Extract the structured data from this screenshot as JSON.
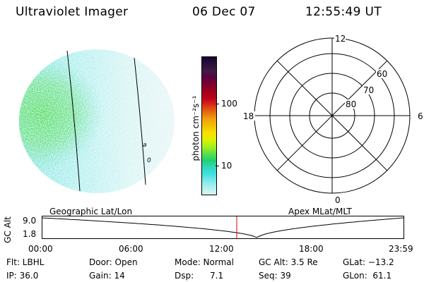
{
  "header": {
    "instrument": "Ultraviolet Imager",
    "date": "06 Dec 07",
    "time": "12:55:49 UT"
  },
  "colorbar": {
    "unit": "photon cm⁻²s⁻¹",
    "ticks": [
      "100",
      "10"
    ],
    "colors": [
      "#1a0033",
      "#2a0f3a",
      "#3f1a47",
      "#5c0040",
      "#80002a",
      "#a0001e",
      "#c0001a",
      "#d8301a",
      "#e86a10",
      "#f0a010",
      "#f0c000",
      "#f8e000",
      "#e0f000",
      "#a8ee20",
      "#60e040",
      "#20d070",
      "#30d8b8",
      "#40e0e0",
      "#80e8e8",
      "#b0f0f0",
      "#d8f4f4"
    ]
  },
  "polar": {
    "mlt_labels": {
      "top": "12",
      "right": "6",
      "bottom": "0",
      "left": "18"
    },
    "lat_labels": [
      "60",
      "70",
      "80"
    ]
  },
  "map_labels": [
    "a",
    "0"
  ],
  "timeline": {
    "left_caption": "Geographic Lat/Lon",
    "right_caption": "Apex MLat/MLT",
    "y_axis_label": "GC Alt",
    "y_ticks": [
      "9.0",
      "1.8"
    ],
    "x_ticks": [
      "00:00",
      "06:00",
      "12:00",
      "18:00",
      "23:59"
    ],
    "current_time_fraction": 0.539,
    "marker_color": "#dd0000"
  },
  "info": {
    "flt": "Flt: LBHL",
    "ip": "IP: 36.0",
    "door": "Door: Open",
    "gain": "Gain: 14",
    "mode": "Mode: Normal",
    "dsp": "Dsp:      7.1",
    "gc_alt": "GC Alt: 3.5 Re",
    "seq": "Seq: 39",
    "glat": "GLat: −13.2",
    "glon": "GLon:  61.1"
  }
}
